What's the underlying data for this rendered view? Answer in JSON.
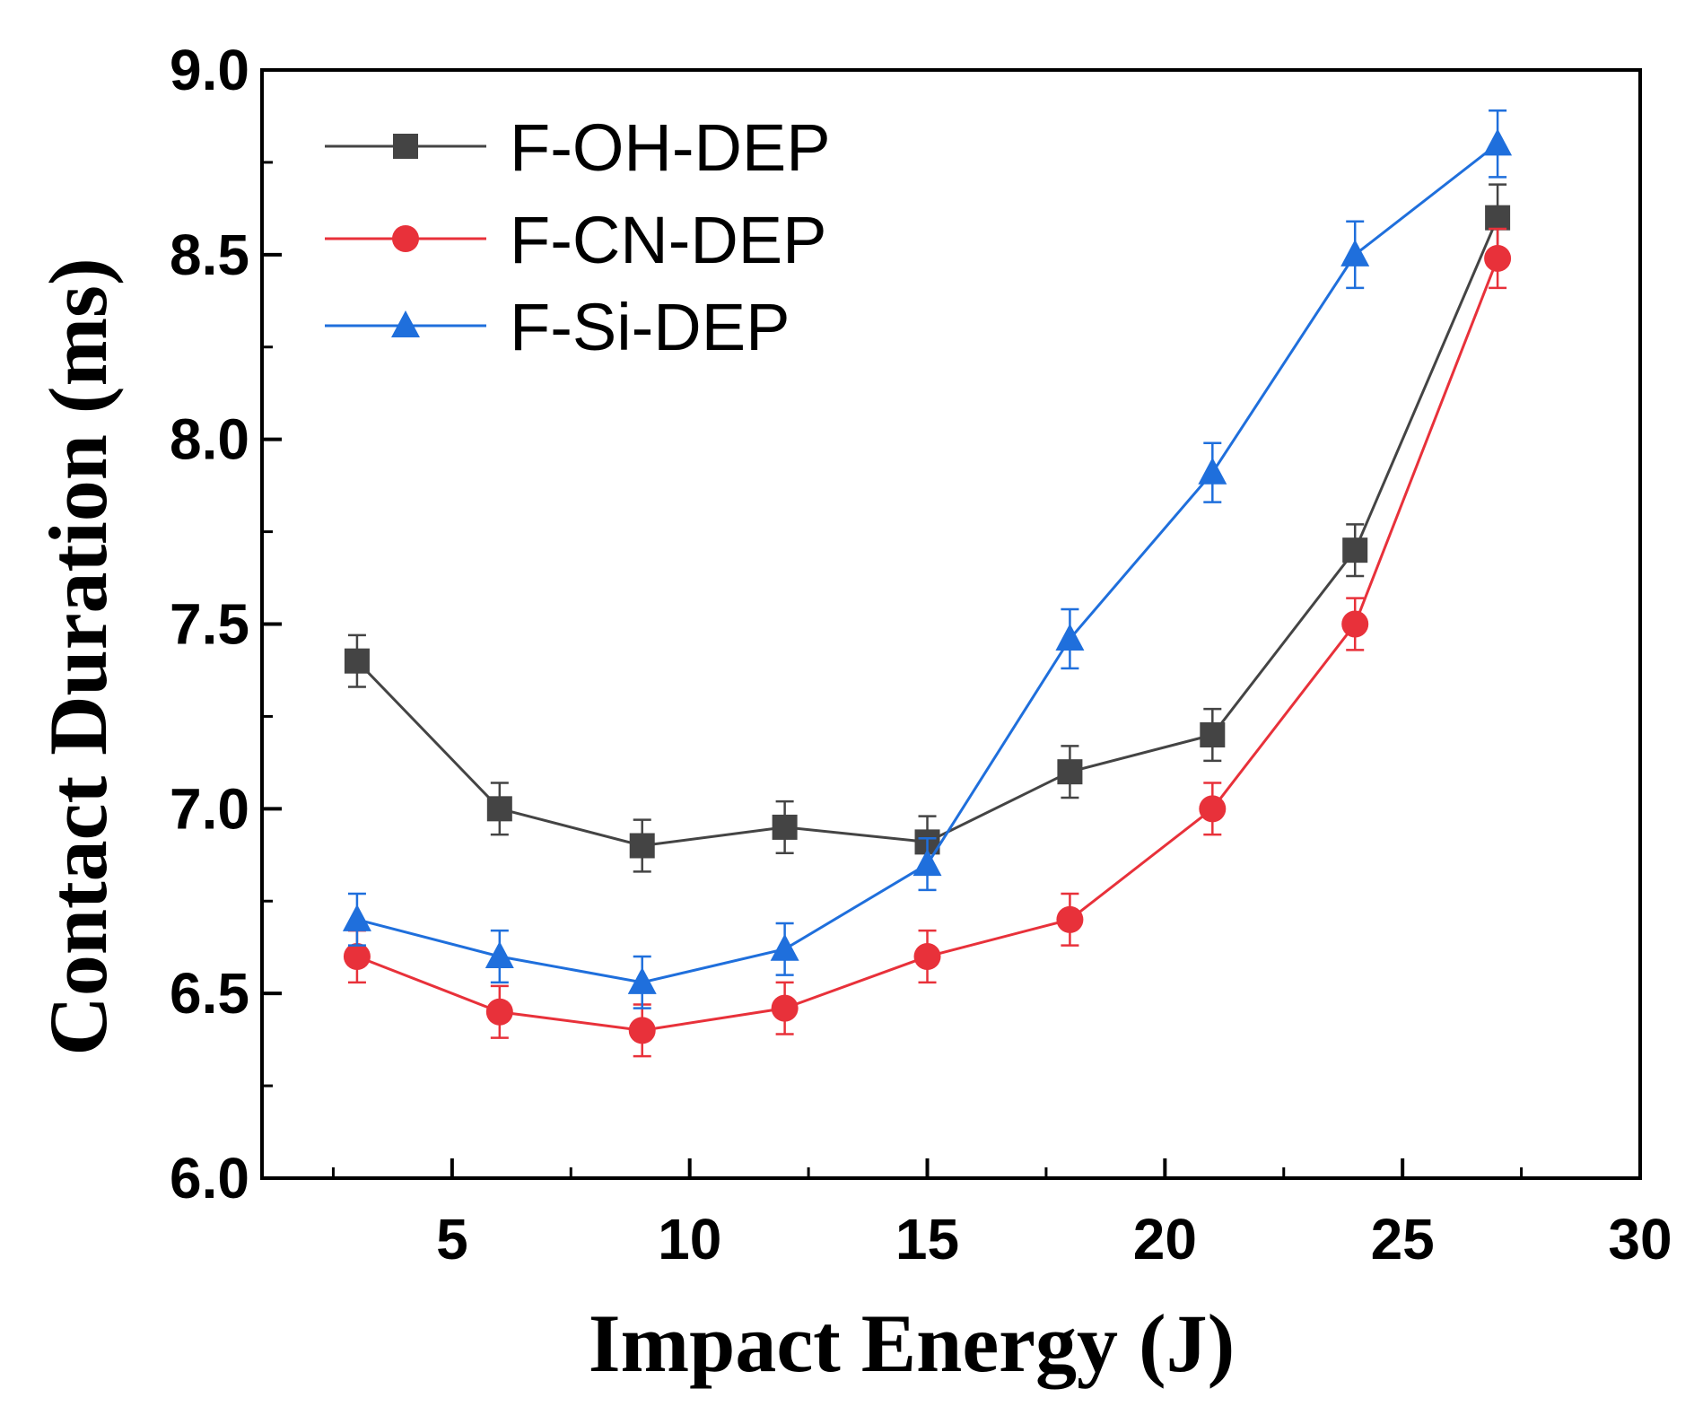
{
  "chart_data": {
    "type": "line",
    "title": "",
    "xlabel": "Impact Energy (J)",
    "ylabel": "Contact Duration (ms)",
    "xlim": [
      1,
      30
    ],
    "ylim": [
      6.0,
      9.0
    ],
    "x_ticks": [
      5,
      10,
      15,
      20,
      25,
      30
    ],
    "x_tick_labels": [
      "5",
      "10",
      "15",
      "20",
      "25",
      "30"
    ],
    "x_minor_ticks": [
      2.5,
      7.5,
      12.5,
      17.5,
      22.5,
      27.5
    ],
    "y_ticks": [
      6.0,
      6.5,
      7.0,
      7.5,
      8.0,
      8.5,
      9.0
    ],
    "y_tick_labels": [
      "6.0",
      "6.5",
      "7.0",
      "7.5",
      "8.0",
      "8.5",
      "9.0"
    ],
    "y_minor_ticks": [
      6.25,
      6.75,
      7.25,
      7.75,
      8.25,
      8.75
    ],
    "grid": false,
    "legend_position": "top-left",
    "x": [
      3,
      6,
      9,
      12,
      15,
      18,
      21,
      24,
      27
    ],
    "series": [
      {
        "name": "F-OH-DEP",
        "color": "#444444",
        "marker": "square",
        "values": [
          7.4,
          7.0,
          6.9,
          6.95,
          6.91,
          7.1,
          7.2,
          7.7,
          8.6
        ],
        "error": [
          0.07,
          0.07,
          0.07,
          0.07,
          0.07,
          0.07,
          0.07,
          0.07,
          0.09
        ]
      },
      {
        "name": "F-CN-DEP",
        "color": "#e8313a",
        "marker": "circle",
        "values": [
          6.6,
          6.45,
          6.4,
          6.46,
          6.6,
          6.7,
          7.0,
          7.5,
          8.49
        ],
        "error": [
          0.07,
          0.07,
          0.07,
          0.07,
          0.07,
          0.07,
          0.07,
          0.07,
          0.08
        ]
      },
      {
        "name": "F-Si-DEP",
        "color": "#1f6fdc",
        "marker": "triangle",
        "values": [
          6.7,
          6.6,
          6.53,
          6.62,
          6.85,
          7.46,
          7.91,
          8.5,
          8.8
        ],
        "error": [
          0.07,
          0.07,
          0.07,
          0.07,
          0.07,
          0.08,
          0.08,
          0.09,
          0.09
        ]
      }
    ]
  }
}
